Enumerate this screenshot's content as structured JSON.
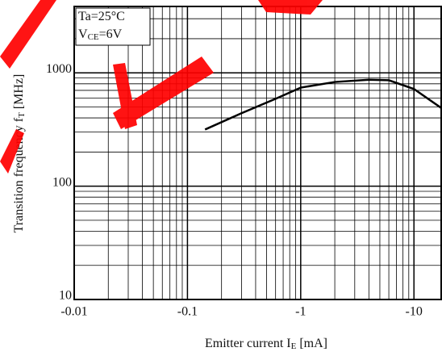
{
  "chart_data": {
    "type": "line",
    "annotations": [
      [
        "Ta=25°C"
      ],
      [
        "V",
        "CE",
        "=6V"
      ]
    ],
    "x_label": [
      "Emitter current I",
      "E",
      " [mA]"
    ],
    "y_label": [
      "Transition frequency f",
      "T",
      " [MHz]"
    ],
    "x_scale": "log",
    "y_scale": "log",
    "grid": true,
    "minor_grid": true,
    "xlim": [
      -0.01,
      -17.4
    ],
    "xticks": [
      -0.01,
      -0.1,
      -1,
      -10
    ],
    "ylim": [
      10,
      3850
    ],
    "yticks": [
      10,
      100,
      1000
    ],
    "x": [
      -0.143,
      -0.3,
      -0.6,
      -1,
      -2,
      -4,
      -6,
      -10,
      -17.4
    ],
    "series": [
      {
        "color": "#000000",
        "values": [
          316,
          440,
          590,
          740,
          830,
          870,
          860,
          720,
          490
        ]
      }
    ]
  }
}
